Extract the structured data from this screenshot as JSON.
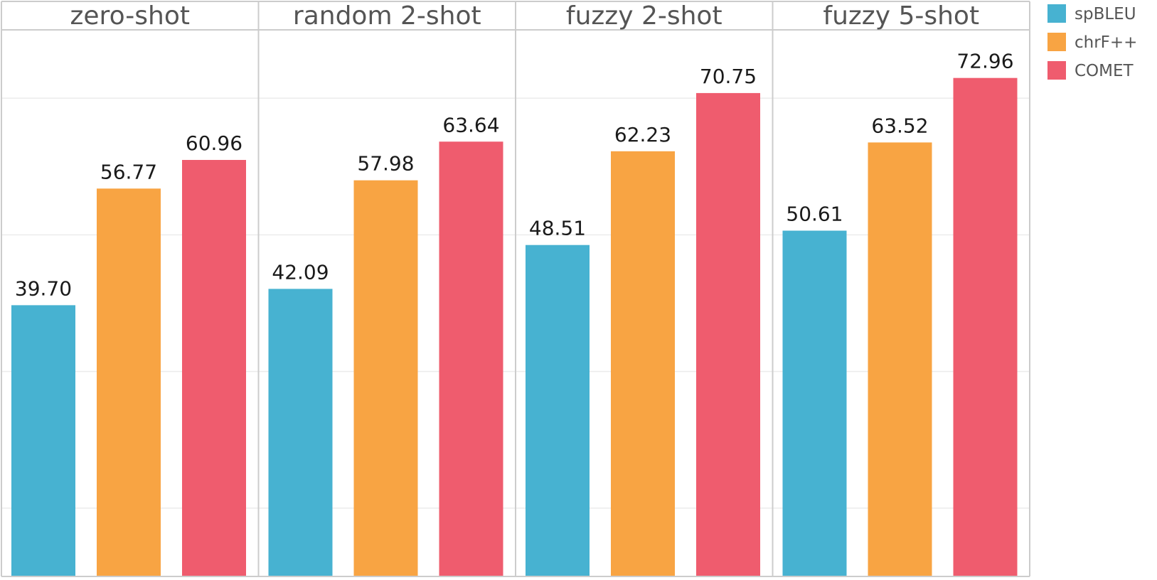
{
  "chart_data": {
    "type": "bar",
    "title": "",
    "xlabel": "",
    "ylabel": "",
    "ylim": [
      0,
      80
    ],
    "gridlines_y": [
      10,
      30,
      50,
      70
    ],
    "grid": true,
    "legend_position": "top-right",
    "categories": [
      "zero-shot",
      "random 2-shot",
      "fuzzy 2-shot",
      "fuzzy 5-shot"
    ],
    "series": [
      {
        "name": "spBLEU",
        "color": "#47b2d1",
        "values": [
          39.7,
          42.09,
          48.51,
          50.61
        ],
        "labels": [
          "39.70",
          "42.09",
          "48.51",
          "50.61"
        ]
      },
      {
        "name": "chrF++",
        "color": "#f8a443",
        "values": [
          56.77,
          57.98,
          62.23,
          63.52
        ],
        "labels": [
          "56.77",
          "57.98",
          "62.23",
          "63.52"
        ]
      },
      {
        "name": "COMET",
        "color": "#ef5c6e",
        "values": [
          60.96,
          63.64,
          70.75,
          72.96
        ],
        "labels": [
          "60.96",
          "63.64",
          "70.75",
          "72.96"
        ]
      }
    ]
  }
}
